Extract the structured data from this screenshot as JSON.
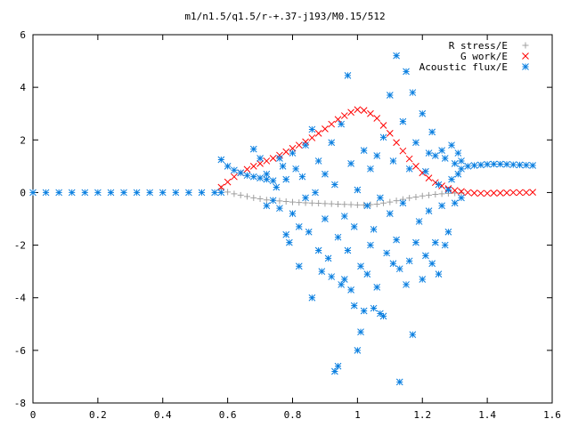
{
  "chart_data": {
    "type": "scatter",
    "title": "m1/n1.5/q1.5/r-+.37-j193/M0.15/512",
    "xlim": [
      0,
      1.6
    ],
    "ylim": [
      -8,
      6
    ],
    "xticks": [
      0,
      0.2,
      0.4,
      0.6,
      0.8,
      1,
      1.2,
      1.4,
      1.6
    ],
    "xtick_labels": [
      "0",
      "0.2",
      "0.4",
      "0.6",
      "0.8",
      "1",
      "1.2",
      "1.4",
      "1.6"
    ],
    "yticks": [
      -8,
      -6,
      -4,
      -2,
      0,
      2,
      4,
      6
    ],
    "ytick_labels": [
      "-8",
      "-6",
      "-4",
      "-2",
      "0",
      "2",
      "4",
      "6"
    ],
    "grid": false,
    "legend_position": "top-right",
    "series": [
      {
        "name": "R stress/E",
        "marker": "plus",
        "color": "#a0a0a0",
        "points": [
          [
            0.58,
            0.15
          ],
          [
            0.6,
            0.02
          ],
          [
            0.62,
            -0.05
          ],
          [
            0.64,
            -0.1
          ],
          [
            0.66,
            -0.15
          ],
          [
            0.68,
            -0.2
          ],
          [
            0.7,
            -0.24
          ],
          [
            0.72,
            -0.28
          ],
          [
            0.74,
            -0.3
          ],
          [
            0.76,
            -0.32
          ],
          [
            0.78,
            -0.34
          ],
          [
            0.8,
            -0.36
          ],
          [
            0.82,
            -0.38
          ],
          [
            0.84,
            -0.39
          ],
          [
            0.86,
            -0.4
          ],
          [
            0.88,
            -0.41
          ],
          [
            0.9,
            -0.42
          ],
          [
            0.92,
            -0.43
          ],
          [
            0.94,
            -0.44
          ],
          [
            0.96,
            -0.45
          ],
          [
            0.98,
            -0.46
          ],
          [
            1.0,
            -0.47
          ],
          [
            1.02,
            -0.47
          ],
          [
            1.04,
            -0.46
          ],
          [
            1.06,
            -0.44
          ],
          [
            1.08,
            -0.4
          ],
          [
            1.1,
            -0.36
          ],
          [
            1.12,
            -0.31
          ],
          [
            1.14,
            -0.26
          ],
          [
            1.16,
            -0.21
          ],
          [
            1.18,
            -0.17
          ],
          [
            1.2,
            -0.13
          ],
          [
            1.22,
            -0.1
          ],
          [
            1.24,
            -0.07
          ],
          [
            1.26,
            -0.05
          ],
          [
            1.28,
            -0.03
          ],
          [
            1.3,
            -0.02
          ],
          [
            1.32,
            -0.01
          ]
        ]
      },
      {
        "name": "G work/E",
        "marker": "cross",
        "color": "#ff0000",
        "points": [
          [
            0.58,
            0.2
          ],
          [
            0.6,
            0.4
          ],
          [
            0.62,
            0.6
          ],
          [
            0.64,
            0.75
          ],
          [
            0.66,
            0.88
          ],
          [
            0.68,
            1.0
          ],
          [
            0.7,
            1.1
          ],
          [
            0.72,
            1.2
          ],
          [
            0.74,
            1.3
          ],
          [
            0.76,
            1.42
          ],
          [
            0.78,
            1.55
          ],
          [
            0.8,
            1.68
          ],
          [
            0.82,
            1.8
          ],
          [
            0.84,
            1.93
          ],
          [
            0.86,
            2.08
          ],
          [
            0.88,
            2.25
          ],
          [
            0.9,
            2.42
          ],
          [
            0.92,
            2.6
          ],
          [
            0.94,
            2.78
          ],
          [
            0.96,
            2.92
          ],
          [
            0.98,
            3.05
          ],
          [
            1.0,
            3.15
          ],
          [
            1.02,
            3.12
          ],
          [
            1.04,
            3.0
          ],
          [
            1.06,
            2.82
          ],
          [
            1.08,
            2.55
          ],
          [
            1.1,
            2.25
          ],
          [
            1.12,
            1.9
          ],
          [
            1.14,
            1.58
          ],
          [
            1.16,
            1.28
          ],
          [
            1.18,
            1.0
          ],
          [
            1.2,
            0.75
          ],
          [
            1.22,
            0.55
          ],
          [
            1.24,
            0.38
          ],
          [
            1.26,
            0.25
          ],
          [
            1.28,
            0.15
          ],
          [
            1.3,
            0.08
          ],
          [
            1.32,
            0.04
          ],
          [
            1.34,
            0.0
          ],
          [
            1.36,
            -0.02
          ],
          [
            1.38,
            -0.03
          ],
          [
            1.4,
            -0.03
          ],
          [
            1.42,
            -0.02
          ],
          [
            1.44,
            -0.02
          ],
          [
            1.46,
            -0.01
          ],
          [
            1.48,
            0.0
          ],
          [
            1.5,
            0.0
          ],
          [
            1.52,
            0.0
          ],
          [
            1.54,
            0.01
          ]
        ]
      },
      {
        "name": "Acoustic flux/E",
        "marker": "star",
        "color": "#0a7fe0",
        "points": [
          [
            0.0,
            0.0
          ],
          [
            0.04,
            0.0
          ],
          [
            0.08,
            0.0
          ],
          [
            0.12,
            0.0
          ],
          [
            0.16,
            0.0
          ],
          [
            0.2,
            0.0
          ],
          [
            0.24,
            0.0
          ],
          [
            0.28,
            0.0
          ],
          [
            0.32,
            0.0
          ],
          [
            0.36,
            0.0
          ],
          [
            0.4,
            0.0
          ],
          [
            0.44,
            0.0
          ],
          [
            0.48,
            0.0
          ],
          [
            0.52,
            0.0
          ],
          [
            0.56,
            0.0
          ],
          [
            0.58,
            0.0
          ],
          [
            0.58,
            1.25
          ],
          [
            0.6,
            1.0
          ],
          [
            0.62,
            0.85
          ],
          [
            0.64,
            0.75
          ],
          [
            0.66,
            0.65
          ],
          [
            0.68,
            0.6
          ],
          [
            0.7,
            0.55
          ],
          [
            0.72,
            0.5
          ],
          [
            0.74,
            0.45
          ],
          [
            0.68,
            1.65
          ],
          [
            0.7,
            1.3
          ],
          [
            0.72,
            0.7
          ],
          [
            0.72,
            -0.5
          ],
          [
            0.74,
            -0.3
          ],
          [
            0.75,
            0.2
          ],
          [
            0.76,
            -0.6
          ],
          [
            0.76,
            1.3
          ],
          [
            0.77,
            1.0
          ],
          [
            0.78,
            -1.6
          ],
          [
            0.78,
            0.5
          ],
          [
            0.79,
            -1.9
          ],
          [
            0.8,
            -0.8
          ],
          [
            0.8,
            1.5
          ],
          [
            0.81,
            0.9
          ],
          [
            0.82,
            -1.3
          ],
          [
            0.82,
            -2.8
          ],
          [
            0.83,
            0.6
          ],
          [
            0.84,
            -0.2
          ],
          [
            0.84,
            1.8
          ],
          [
            0.85,
            -1.5
          ],
          [
            0.86,
            -4.0
          ],
          [
            0.86,
            2.4
          ],
          [
            0.87,
            0.0
          ],
          [
            0.88,
            -2.2
          ],
          [
            0.88,
            1.2
          ],
          [
            0.89,
            -3.0
          ],
          [
            0.9,
            -1.0
          ],
          [
            0.9,
            0.7
          ],
          [
            0.91,
            -2.5
          ],
          [
            0.92,
            -3.2
          ],
          [
            0.92,
            1.9
          ],
          [
            0.93,
            -6.8
          ],
          [
            0.93,
            0.3
          ],
          [
            0.94,
            -6.6
          ],
          [
            0.94,
            -1.7
          ],
          [
            0.95,
            -3.5
          ],
          [
            0.95,
            2.6
          ],
          [
            0.96,
            -3.3
          ],
          [
            0.96,
            -0.9
          ],
          [
            0.97,
            4.45
          ],
          [
            0.97,
            -2.2
          ],
          [
            0.98,
            -3.7
          ],
          [
            0.98,
            1.1
          ],
          [
            0.99,
            -4.3
          ],
          [
            0.99,
            -1.3
          ],
          [
            1.0,
            -6.0
          ],
          [
            1.0,
            0.1
          ],
          [
            1.01,
            -5.3
          ],
          [
            1.01,
            -2.8
          ],
          [
            1.02,
            -4.5
          ],
          [
            1.02,
            1.6
          ],
          [
            1.03,
            -3.1
          ],
          [
            1.03,
            -0.5
          ],
          [
            1.04,
            -2.0
          ],
          [
            1.04,
            0.9
          ],
          [
            1.05,
            -4.4
          ],
          [
            1.05,
            -1.4
          ],
          [
            1.06,
            1.4
          ],
          [
            1.06,
            -3.6
          ],
          [
            1.07,
            -4.6
          ],
          [
            1.07,
            -0.2
          ],
          [
            1.08,
            -4.7
          ],
          [
            1.08,
            2.1
          ],
          [
            1.09,
            -2.3
          ],
          [
            1.1,
            3.7
          ],
          [
            1.1,
            -0.8
          ],
          [
            1.11,
            -2.7
          ],
          [
            1.11,
            1.2
          ],
          [
            1.12,
            5.2
          ],
          [
            1.12,
            -1.8
          ],
          [
            1.13,
            -7.2
          ],
          [
            1.13,
            -2.9
          ],
          [
            1.14,
            2.7
          ],
          [
            1.14,
            -0.4
          ],
          [
            1.15,
            4.6
          ],
          [
            1.15,
            -3.5
          ],
          [
            1.16,
            0.9
          ],
          [
            1.16,
            -2.6
          ],
          [
            1.17,
            3.8
          ],
          [
            1.17,
            -5.4
          ],
          [
            1.18,
            -1.9
          ],
          [
            1.18,
            1.9
          ],
          [
            1.19,
            -1.1
          ],
          [
            1.2,
            3.0
          ],
          [
            1.2,
            -3.3
          ],
          [
            1.21,
            0.8
          ],
          [
            1.21,
            -2.4
          ],
          [
            1.22,
            1.5
          ],
          [
            1.22,
            -0.7
          ],
          [
            1.23,
            -2.7
          ],
          [
            1.23,
            2.3
          ],
          [
            1.24,
            1.4
          ],
          [
            1.24,
            -1.9
          ],
          [
            1.25,
            0.3
          ],
          [
            1.25,
            -3.1
          ],
          [
            1.26,
            1.6
          ],
          [
            1.26,
            -0.5
          ],
          [
            1.27,
            -2.0
          ],
          [
            1.27,
            1.3
          ],
          [
            1.28,
            0.1
          ],
          [
            1.28,
            -1.5
          ],
          [
            1.29,
            0.5
          ],
          [
            1.29,
            1.8
          ],
          [
            1.3,
            -0.4
          ],
          [
            1.3,
            1.1
          ],
          [
            1.31,
            0.7
          ],
          [
            1.31,
            1.5
          ],
          [
            1.32,
            -0.2
          ],
          [
            1.32,
            1.2
          ],
          [
            1.32,
            0.9
          ],
          [
            1.34,
            1.0
          ],
          [
            1.36,
            1.03
          ],
          [
            1.38,
            1.05
          ],
          [
            1.4,
            1.07
          ],
          [
            1.42,
            1.08
          ],
          [
            1.44,
            1.08
          ],
          [
            1.46,
            1.07
          ],
          [
            1.48,
            1.06
          ],
          [
            1.5,
            1.05
          ],
          [
            1.52,
            1.04
          ],
          [
            1.54,
            1.03
          ]
        ]
      }
    ]
  }
}
